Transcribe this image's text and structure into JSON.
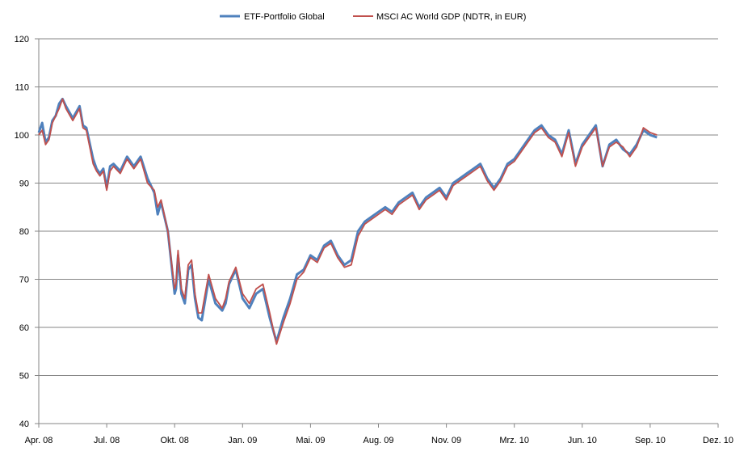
{
  "chart_data": {
    "type": "line",
    "title": "",
    "xlabel": "",
    "ylabel": "",
    "ylim": [
      40,
      120
    ],
    "yticks": [
      40,
      50,
      60,
      70,
      80,
      90,
      100,
      110,
      120
    ],
    "ytick_labels": [
      "40",
      "50",
      "60",
      "70",
      "80",
      "90",
      "100",
      "110",
      "120"
    ],
    "xlim": [
      0,
      10
    ],
    "xtick_labels": [
      "Apr. 08",
      "Jul. 08",
      "Okt. 08",
      "Jan. 09",
      "Mai. 09",
      "Aug. 09",
      "Nov. 09",
      "Mrz. 10",
      "Jun. 10",
      "Sep. 10",
      "Dez. 10"
    ],
    "grid": "horizontal",
    "legend_position": "top-center",
    "x_units": "quarters since Apr. 08 (tick index)",
    "series": [
      {
        "name": "ETF-Portfolio Global",
        "color": "#4F81BD",
        "x": [
          0,
          0.05,
          0.1,
          0.15,
          0.2,
          0.25,
          0.3,
          0.35,
          0.4,
          0.5,
          0.6,
          0.65,
          0.7,
          0.8,
          0.85,
          0.9,
          0.95,
          1.0,
          1.05,
          1.1,
          1.2,
          1.3,
          1.4,
          1.5,
          1.6,
          1.7,
          1.75,
          1.8,
          1.9,
          2.0,
          2.02,
          2.05,
          2.1,
          2.15,
          2.2,
          2.25,
          2.3,
          2.35,
          2.4,
          2.5,
          2.6,
          2.7,
          2.75,
          2.8,
          2.9,
          3.0,
          3.1,
          3.2,
          3.3,
          3.4,
          3.5,
          3.6,
          3.65,
          3.7,
          3.8,
          3.9,
          4.0,
          4.1,
          4.2,
          4.3,
          4.4,
          4.5,
          4.6,
          4.7,
          4.8,
          4.9,
          5.0,
          5.1,
          5.2,
          5.3,
          5.4,
          5.5,
          5.6,
          5.7,
          5.8,
          5.9,
          6.0,
          6.1,
          6.2,
          6.3,
          6.4,
          6.5,
          6.6,
          6.7,
          6.8,
          6.9,
          7.0,
          7.1,
          7.2,
          7.3,
          7.4,
          7.5,
          7.6,
          7.7,
          7.8,
          7.9,
          8.0,
          8.1,
          8.2,
          8.3,
          8.4,
          8.5,
          8.6,
          8.7,
          8.8,
          8.9,
          9.0,
          9.1
        ],
        "values": [
          100.5,
          102.5,
          98.5,
          99.5,
          103,
          104,
          106.5,
          107.5,
          106,
          103.5,
          106,
          102,
          101.5,
          95,
          93,
          92,
          93,
          89,
          93.5,
          94,
          92.5,
          95.5,
          93.5,
          95.5,
          91,
          88,
          83.5,
          86,
          80,
          67,
          68,
          75,
          67,
          65,
          72,
          73,
          66,
          62,
          61.5,
          70,
          65,
          63.5,
          65,
          69,
          72,
          66,
          64,
          67,
          68,
          62,
          57,
          62,
          64,
          66,
          71,
          72,
          75,
          74,
          77,
          78,
          75,
          73,
          74,
          80,
          82,
          83,
          84,
          85,
          84,
          86,
          87,
          88,
          85,
          87,
          88,
          89,
          87,
          90,
          91,
          92,
          93,
          94,
          91,
          89,
          91,
          94,
          95,
          97,
          99,
          101,
          102,
          100,
          99,
          96,
          101,
          94,
          98,
          100,
          102,
          93.5,
          98,
          99,
          97,
          96,
          98,
          101,
          100,
          99.5
        ]
      },
      {
        "name": "MSCI AC World GDP (NDTR,  in EUR)",
        "color": "#C0504D",
        "x": [
          0,
          0.05,
          0.1,
          0.15,
          0.2,
          0.25,
          0.3,
          0.35,
          0.4,
          0.5,
          0.6,
          0.65,
          0.7,
          0.8,
          0.85,
          0.9,
          0.95,
          1.0,
          1.05,
          1.1,
          1.2,
          1.3,
          1.4,
          1.5,
          1.6,
          1.7,
          1.75,
          1.8,
          1.9,
          2.0,
          2.02,
          2.05,
          2.1,
          2.15,
          2.2,
          2.25,
          2.3,
          2.35,
          2.4,
          2.5,
          2.6,
          2.7,
          2.75,
          2.8,
          2.9,
          3.0,
          3.1,
          3.2,
          3.3,
          3.4,
          3.5,
          3.6,
          3.65,
          3.7,
          3.8,
          3.9,
          4.0,
          4.1,
          4.2,
          4.3,
          4.4,
          4.5,
          4.6,
          4.7,
          4.8,
          4.9,
          5.0,
          5.1,
          5.2,
          5.3,
          5.4,
          5.5,
          5.6,
          5.7,
          5.8,
          5.9,
          6.0,
          6.1,
          6.2,
          6.3,
          6.4,
          6.5,
          6.6,
          6.7,
          6.8,
          6.9,
          7.0,
          7.1,
          7.2,
          7.3,
          7.4,
          7.5,
          7.6,
          7.7,
          7.8,
          7.9,
          8.0,
          8.1,
          8.2,
          8.3,
          8.4,
          8.5,
          8.6,
          8.7,
          8.8,
          8.9,
          9.0,
          9.1
        ],
        "values": [
          100,
          101,
          98,
          99,
          102.5,
          104,
          105.5,
          107.5,
          105.5,
          103,
          105.5,
          101.5,
          101,
          94,
          92.5,
          91.5,
          92.5,
          88.5,
          92.5,
          93.5,
          92,
          95,
          93,
          95,
          90,
          88.5,
          85,
          86.5,
          80,
          68,
          69,
          76,
          68,
          66,
          73,
          74,
          67,
          63,
          63,
          71,
          66,
          64,
          66,
          69.5,
          72.5,
          67,
          65,
          68,
          69,
          63,
          56.5,
          61,
          63,
          65,
          70,
          71.5,
          74.5,
          73.5,
          76.5,
          77.5,
          74.5,
          72.5,
          73,
          79,
          81.5,
          82.5,
          83.5,
          84.5,
          83.5,
          85.5,
          86.5,
          87.5,
          84.5,
          86.5,
          87.5,
          88.5,
          86.5,
          89.5,
          90.5,
          91.5,
          92.5,
          93.5,
          90.5,
          88.5,
          90.5,
          93.5,
          94.5,
          96.5,
          98.5,
          100.5,
          101.5,
          99.5,
          98.5,
          95.5,
          100.5,
          93.5,
          97.5,
          99.5,
          101.5,
          93.5,
          97.5,
          98.5,
          97.5,
          95.5,
          97.5,
          101.5,
          100.5,
          100
        ]
      }
    ]
  }
}
